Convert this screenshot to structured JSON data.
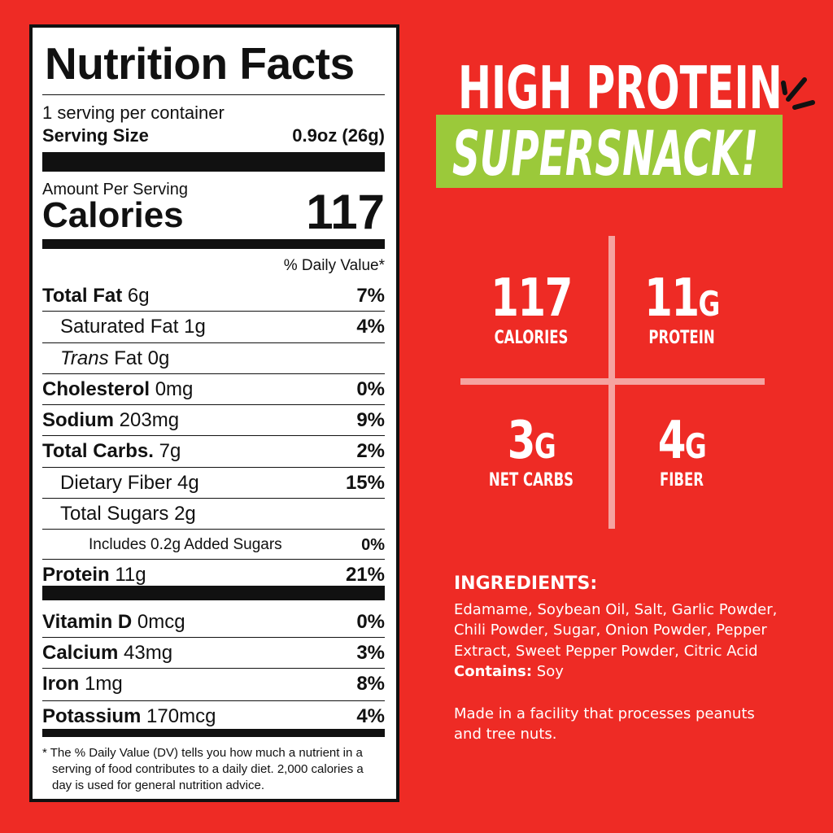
{
  "nutrition": {
    "title": "Nutrition Facts",
    "servings": "1 serving per container",
    "serving_size_label": "Serving Size",
    "serving_size_value": "0.9oz (26g)",
    "amount_per_serving": "Amount Per Serving",
    "calories_label": "Calories",
    "calories_value": "117",
    "dv_header": "% Daily Value*",
    "rows": [
      {
        "name": "Total Fat",
        "amount": "6g",
        "dv": "7%"
      },
      {
        "name": "Saturated Fat",
        "amount": "1g",
        "dv": "4%"
      },
      {
        "name": "Trans",
        "name2": "Fat",
        "amount": "0g",
        "dv": ""
      },
      {
        "name": "Cholesterol",
        "amount": "0mg",
        "dv": "0%"
      },
      {
        "name": "Sodium",
        "amount": "203mg",
        "dv": "9%"
      },
      {
        "name": "Total Carbs.",
        "amount": "7g",
        "dv": "2%"
      },
      {
        "name": "Dietary Fiber",
        "amount": "4g",
        "dv": "15%"
      },
      {
        "name": "Total Sugars",
        "amount": "2g",
        "dv": ""
      },
      {
        "name": "Includes 0.2g Added Sugars",
        "amount": "",
        "dv": "0%"
      },
      {
        "name": "Protein",
        "amount": "11g",
        "dv": "21%"
      },
      {
        "name": "Vitamin D",
        "amount": "0mcg",
        "dv": "0%"
      },
      {
        "name": "Calcium",
        "amount": "43mg",
        "dv": "3%"
      },
      {
        "name": "Iron",
        "amount": "1mg",
        "dv": "8%"
      },
      {
        "name": "Potassium",
        "amount": "170mcg",
        "dv": "4%"
      }
    ],
    "footnote": "* The % Daily Value (DV) tells you how much a nutrient in a serving of food contributes to a daily diet. 2,000 calories a day is used for general nutrition advice."
  },
  "headline": {
    "line1": "HIGH PROTEIN",
    "line2": "SUPERSNACK!"
  },
  "stats": [
    {
      "value": "117",
      "unit": "",
      "label": "CALORIES"
    },
    {
      "value": "11",
      "unit": "G",
      "label": "PROTEIN"
    },
    {
      "value": "3",
      "unit": "G",
      "label": "NET CARBS"
    },
    {
      "value": "4",
      "unit": "G",
      "label": "FIBER"
    }
  ],
  "ingredients": {
    "heading": "INGREDIENTS:",
    "list": "Edamame, Soybean Oil, Salt, Garlic Powder, Chili Powder, Sugar, Onion Powder, Pepper Extract, Sweet Pepper Powder, Citric Acid",
    "contains_label": "Contains:",
    "contains_value": "Soy",
    "facility": "Made in a facility that processes peanuts and tree nuts."
  },
  "colors": {
    "background": "#ee2b25",
    "accent_green": "#9bc93a",
    "divider": "#f5a3a0"
  }
}
